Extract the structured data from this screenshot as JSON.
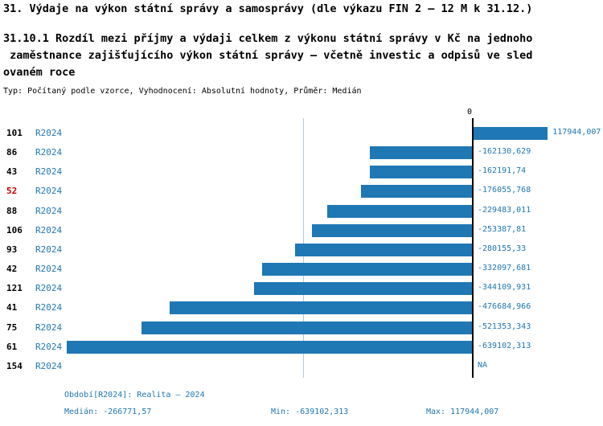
{
  "header": {
    "title": "31. Výdaje na výkon státní správy a samosprávy (dle výkazu FIN 2 – 12 M k 31.12.)",
    "subtitle": "31.10.1 Rozdíl mezi příjmy a výdaji celkem z výkonu státní správy v Kč na jednoho\n zaměstnance zajišťujícího výkon státní správy – včetně investic a odpisů ve sled\novaném roce",
    "meta": "Typ: Počítaný podle vzorce, Vyhodnocení: Absolutní hodnoty, Průměr: Medián"
  },
  "chart_data": {
    "type": "bar",
    "orientation": "horizontal",
    "title": "31.10.1 Rozdíl mezi příjmy a výdaji celkem z výkonu státní správy v Kč na jednoho zaměstnance zajišťujícího výkon státní správy – včetně investic a odpisů ve sledovaném roce",
    "zero_label": "0",
    "categories": [
      "101",
      "86",
      "43",
      "52",
      "88",
      "106",
      "93",
      "42",
      "121",
      "41",
      "75",
      "61",
      "154"
    ],
    "series": [
      {
        "name": "R2024",
        "values": [
          117944.007,
          -162130.629,
          -162191.74,
          -176055.768,
          -229483.011,
          -253387.81,
          -280155.33,
          -332097.681,
          -344109.931,
          -476684.966,
          -521353.343,
          -639102.313,
          null
        ]
      }
    ],
    "value_labels": [
      "117944,007",
      "-162130,629",
      "-162191,74",
      "-176055,768",
      "-229483,011",
      "-253387,81",
      "-280155,33",
      "-332097,681",
      "-344109,931",
      "-476684,966",
      "-521353,343",
      "-639102,313",
      "NA"
    ],
    "xlim": [
      -639102.313,
      117944.007
    ],
    "median": -266771.57,
    "highlight_category": "52",
    "colors": {
      "bar": "#1f77b4",
      "series_label": "#1f77b4",
      "value_label": "#1f77b4",
      "category_label": "#000000",
      "highlight": "#cc0000",
      "median_line": "#a8cfe4",
      "zero_line": "#000000",
      "footer_text": "#1f77b4"
    },
    "grid": false,
    "legend": "none"
  },
  "footer": {
    "period": "Období[R2024]: Realita – 2024",
    "median": "Medián: -266771,57",
    "min": "Min: -639102,313",
    "max": "Max: 117944,007"
  }
}
